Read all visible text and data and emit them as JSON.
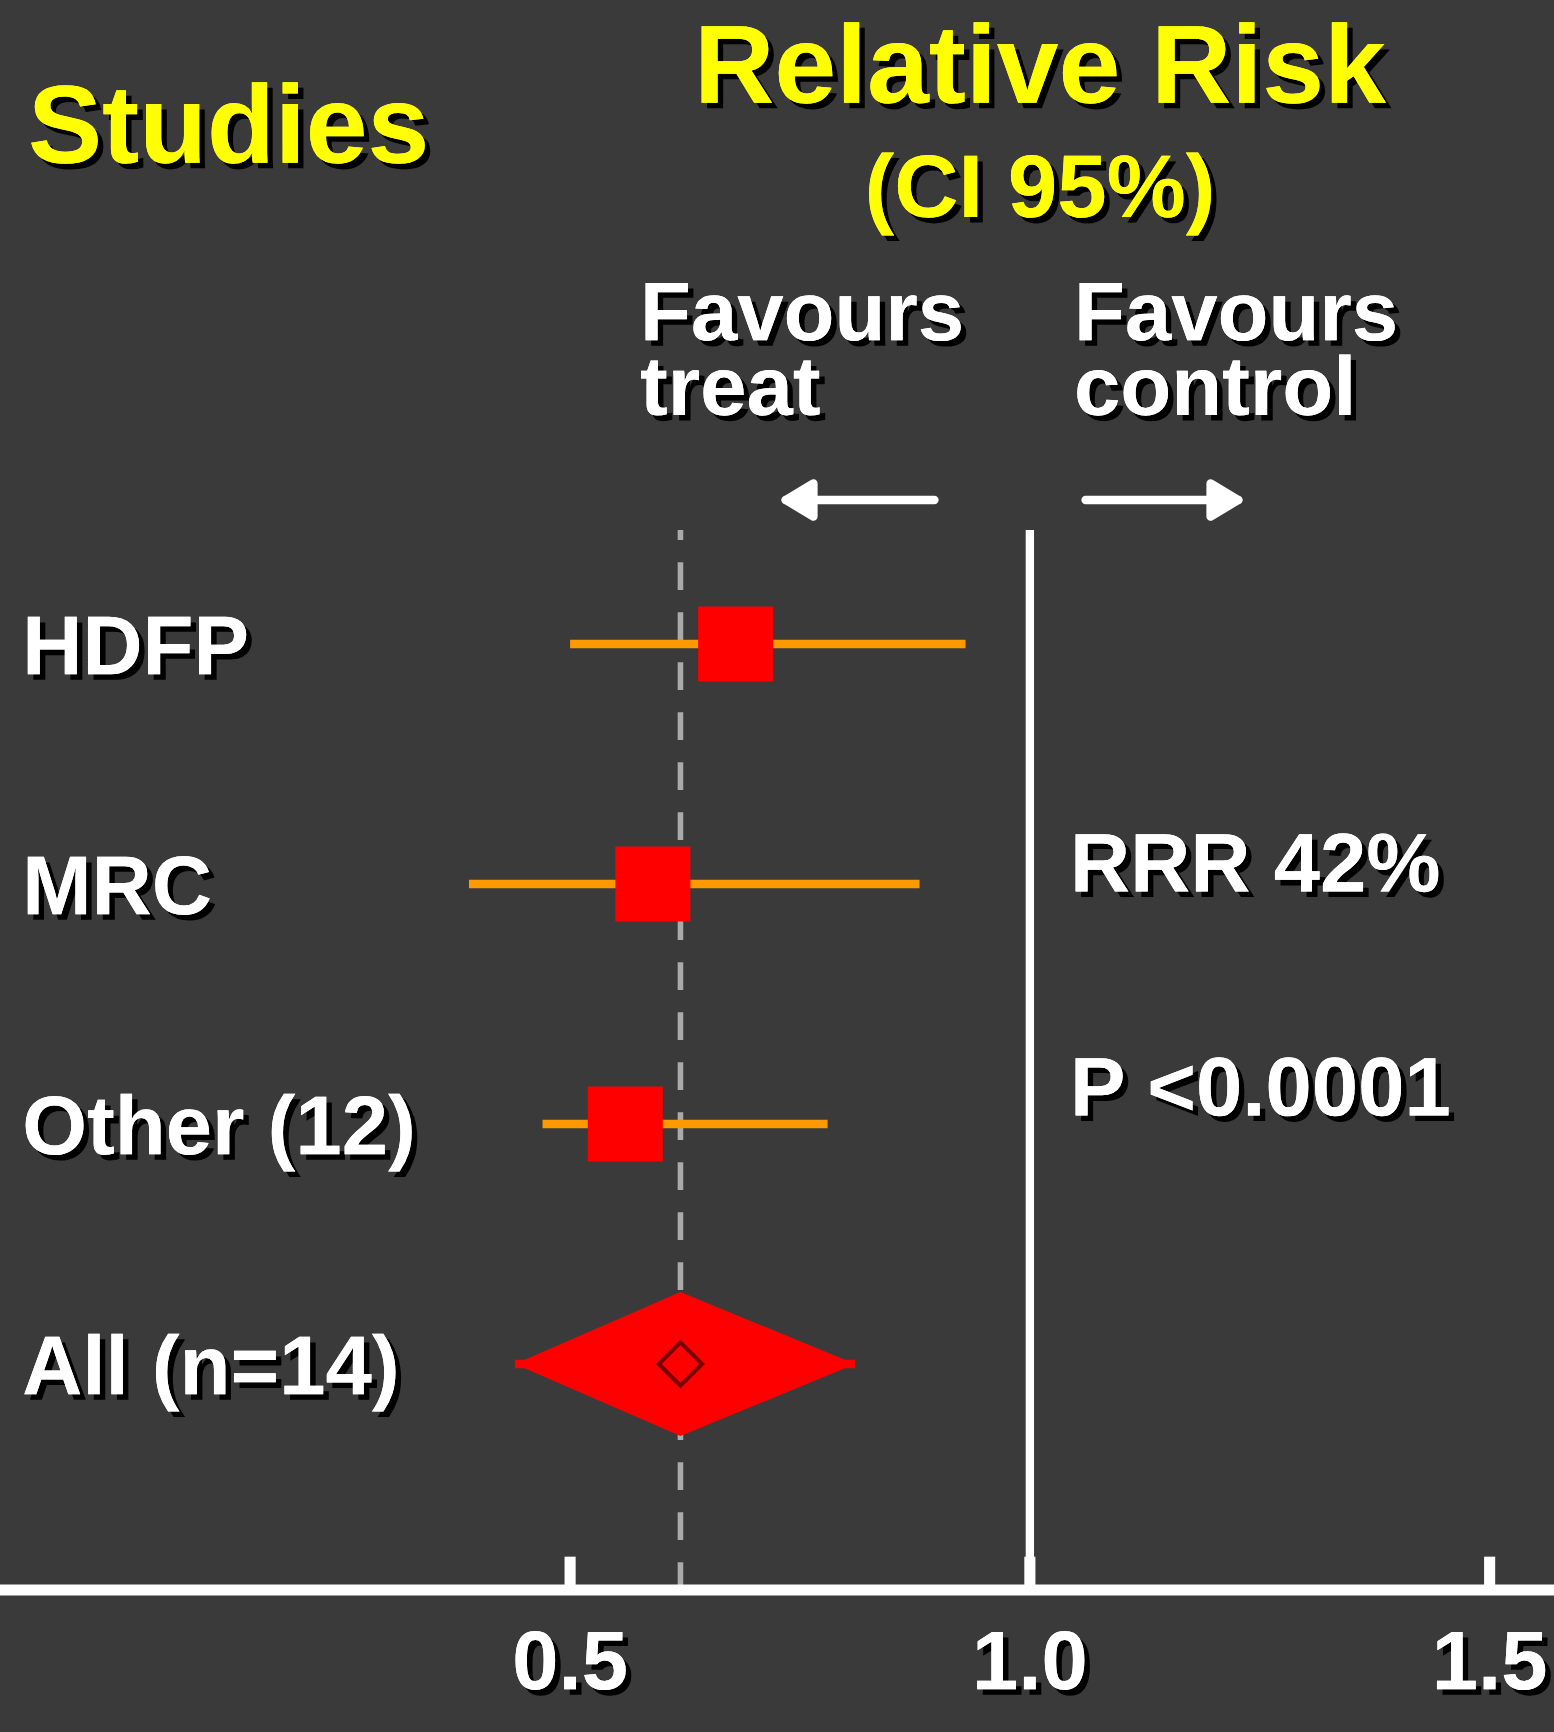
{
  "chart_data": {
    "type": "scatter",
    "orientation": "horizontal",
    "title": "Relative Risk",
    "subtitle": "(CI 95%)",
    "ylabel": "Studies",
    "categories": [
      "HDFP",
      "MRC",
      "Other (12)",
      "All (n=14)"
    ],
    "series": [
      {
        "type": "scatter",
        "marker": "square",
        "color": "#ff0000",
        "values": [
          0.68,
          0.59,
          0.56,
          null
        ],
        "errors": [
          [
            0.5,
            0.93
          ],
          [
            0.39,
            0.88
          ],
          [
            0.47,
            0.78
          ],
          null
        ]
      },
      {
        "type": "scatter",
        "marker": "diamond",
        "color": "#ff0000",
        "values": [
          null,
          null,
          null,
          0.62
        ],
        "errors": [
          null,
          null,
          null,
          [
            0.44,
            0.81
          ]
        ]
      }
    ],
    "xlim": [
      -0.12,
      1.57
    ],
    "xticks": [
      0.5,
      {
        "value": 1.0,
        "label": "1.0"
      },
      1.5
    ],
    "ref_lines": [
      {
        "axis": "x",
        "value": 1.0,
        "color": "#ffffff",
        "line_style": "solid"
      },
      {
        "axis": "x",
        "value": 0.62,
        "color": "#aaaaaa",
        "line_style": "dashed"
      }
    ],
    "annotations": [
      "Favours\ntreat",
      "Favours\ncontrol",
      "RRR 42%",
      "P <0.0001"
    ]
  }
}
